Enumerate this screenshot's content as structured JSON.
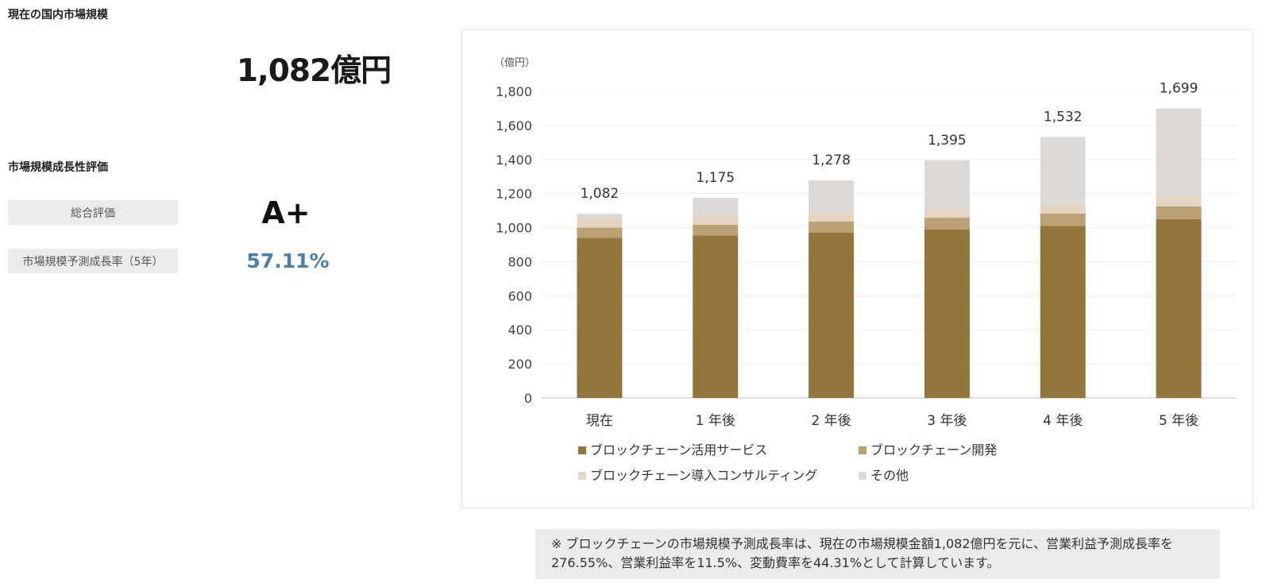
{
  "left_panel": {
    "market_title": "現在の国内市場規模",
    "market_size": "1,082億円",
    "growth_title": "市場規模成長性評価",
    "overall_label": "総合評価",
    "overall_value": "A+",
    "rate_label": "市場規模予測成長率（5年）",
    "rate_value": "57.11%"
  },
  "colors": {
    "series": [
      "#94763c",
      "#b9a173",
      "#e3d5c1",
      "#dcd9d6"
    ],
    "rate": "#4a7ea8",
    "label_bg": "#ecebea"
  },
  "chart_data": {
    "type": "bar",
    "stacked": true,
    "unit_label": "（億円）",
    "categories": [
      "現在",
      "1 年後",
      "2 年後",
      "3 年後",
      "4 年後",
      "5 年後"
    ],
    "series": [
      {
        "name": "ブロックチェーン活用サービス",
        "values": [
          940,
          955,
          970,
          990,
          1010,
          1050
        ]
      },
      {
        "name": "ブロックチェーン開発",
        "values": [
          60,
          62,
          65,
          68,
          72,
          75
        ]
      },
      {
        "name": "ブロックチェーン導入コンサルティング",
        "values": [
          62,
          55,
          53,
          45,
          55,
          55
        ]
      },
      {
        "name": "その他",
        "values": [
          20,
          103,
          190,
          292,
          395,
          519
        ]
      }
    ],
    "totals": [
      "1,082",
      "1,175",
      "1,278",
      "1,395",
      "1,532",
      "1,699"
    ],
    "total_values": [
      1082,
      1175,
      1278,
      1395,
      1532,
      1699
    ],
    "yticks": [
      "0",
      "200",
      "400",
      "600",
      "800",
      "1,000",
      "1,200",
      "1,400",
      "1,600",
      "1,800"
    ],
    "ylim": [
      0,
      1800
    ],
    "grid": true,
    "legend_position": "bottom"
  },
  "note": "※ ブロックチェーンの市場規模予測成長率は、現在の市場規模金額1,082億円を元に、営業利益予測成長率を276.55%、営業利益率を11.5%、変動費率を44.31%として計算しています。"
}
